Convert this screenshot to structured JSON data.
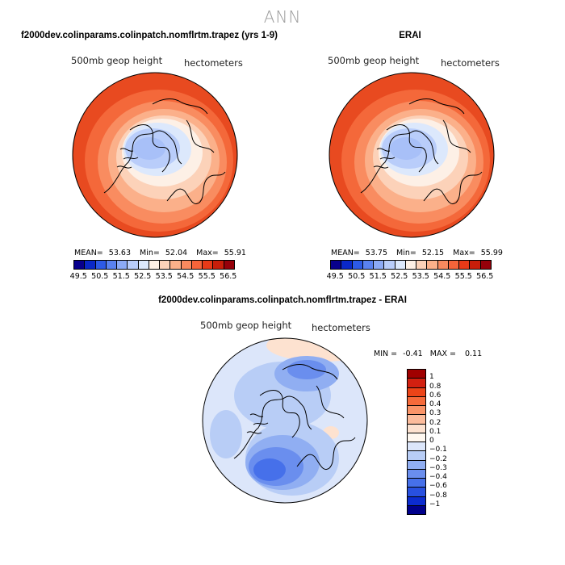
{
  "figure": {
    "title": "ANN"
  },
  "chart_data": [
    {
      "type": "heatmap",
      "projection": "polar stereographic, north pole",
      "title": "f2000dev.colinparams.colinpatch.nomflrtm.trapez (yrs 1-9)",
      "left_label": "500mb geop height",
      "right_label": "hectometers",
      "stats": {
        "mean_label": "MEAN=",
        "mean": "53.63",
        "min_label": "Min=",
        "min": "52.04",
        "max_label": "Max=",
        "max": "55.91"
      },
      "colorbar": {
        "levels": [
          "49.5",
          "50.5",
          "51.5",
          "52.5",
          "53.5",
          "54.5",
          "55.5",
          "56.5"
        ],
        "colors": [
          "#08008c",
          "#0a28c8",
          "#2d5ae6",
          "#5a82f0",
          "#8caaf5",
          "#b9cdfa",
          "#dce8fc",
          "#fdf0e6",
          "#fcd2b9",
          "#fbb08a",
          "#f98a5f",
          "#f5643a",
          "#e83a18",
          "#c81e0a",
          "#96000a"
        ]
      },
      "field_colors": {
        "outer": "#e84a20",
        "ring1": "#f4683a",
        "ring2": "#f98c60",
        "ring3": "#fbb08a",
        "ring4": "#fcd2b9",
        "ring5": "#fdf0e6",
        "ring6": "#dce8fc",
        "core": "#b9cdfa",
        "center": "#a8c0f8"
      }
    },
    {
      "type": "heatmap",
      "projection": "polar stereographic, north pole",
      "title": "ERAI",
      "left_label": "500mb geop height",
      "right_label": "hectometers",
      "stats": {
        "mean_label": "MEAN=",
        "mean": "53.75",
        "min_label": "Min=",
        "min": "52.15",
        "max_label": "Max=",
        "max": "55.99"
      },
      "colorbar": {
        "levels": [
          "49.5",
          "50.5",
          "51.5",
          "52.5",
          "53.5",
          "54.5",
          "55.5",
          "56.5"
        ],
        "colors": [
          "#08008c",
          "#0a28c8",
          "#2d5ae6",
          "#5a82f0",
          "#8caaf5",
          "#b9cdfa",
          "#dce8fc",
          "#fdf0e6",
          "#fcd2b9",
          "#fbb08a",
          "#f98a5f",
          "#f5643a",
          "#e83a18",
          "#c81e0a",
          "#96000a"
        ]
      },
      "field_colors": {
        "outer": "#e84a20",
        "ring1": "#f4683a",
        "ring2": "#f98c60",
        "ring3": "#fbb08a",
        "ring4": "#fcd2b9",
        "ring5": "#fdf0e6",
        "ring6": "#dce8fc",
        "core": "#b9cdfa",
        "center": "#a8c0f8"
      }
    },
    {
      "type": "heatmap",
      "projection": "polar stereographic, north pole",
      "title": "f2000dev.colinparams.colinpatch.nomflrtm.trapez - ERAI",
      "left_label": "500mb geop height",
      "right_label": "hectometers",
      "stats": {
        "min_label": "MIN =",
        "min": "-0.41",
        "max_label": "MAX =",
        "max": "0.11"
      },
      "colorbar": {
        "levels": [
          "1",
          "0.8",
          "0.6",
          "0.4",
          "0.3",
          "0.2",
          "0.1",
          "0",
          "−0.1",
          "−0.2",
          "−0.3",
          "−0.4",
          "−0.6",
          "−0.8",
          "−1"
        ],
        "colors": [
          "#a00000",
          "#d22010",
          "#ec4418",
          "#f66a3a",
          "#fa9468",
          "#fcbc9c",
          "#fde2d0",
          "#fff8f0",
          "#dce6fa",
          "#b8cdf6",
          "#90aef2",
          "#6a8eee",
          "#4670ea",
          "#2850e0",
          "#0c2cd0",
          "#00008c"
        ]
      },
      "field_colors": {
        "base": "#dce6fa",
        "light": "#b8cdf6",
        "mid": "#90aef2",
        "strong": "#6a8eee",
        "deep": "#4670ea",
        "warm": "#fde2d0",
        "neutral": "#fff8f0"
      }
    }
  ]
}
